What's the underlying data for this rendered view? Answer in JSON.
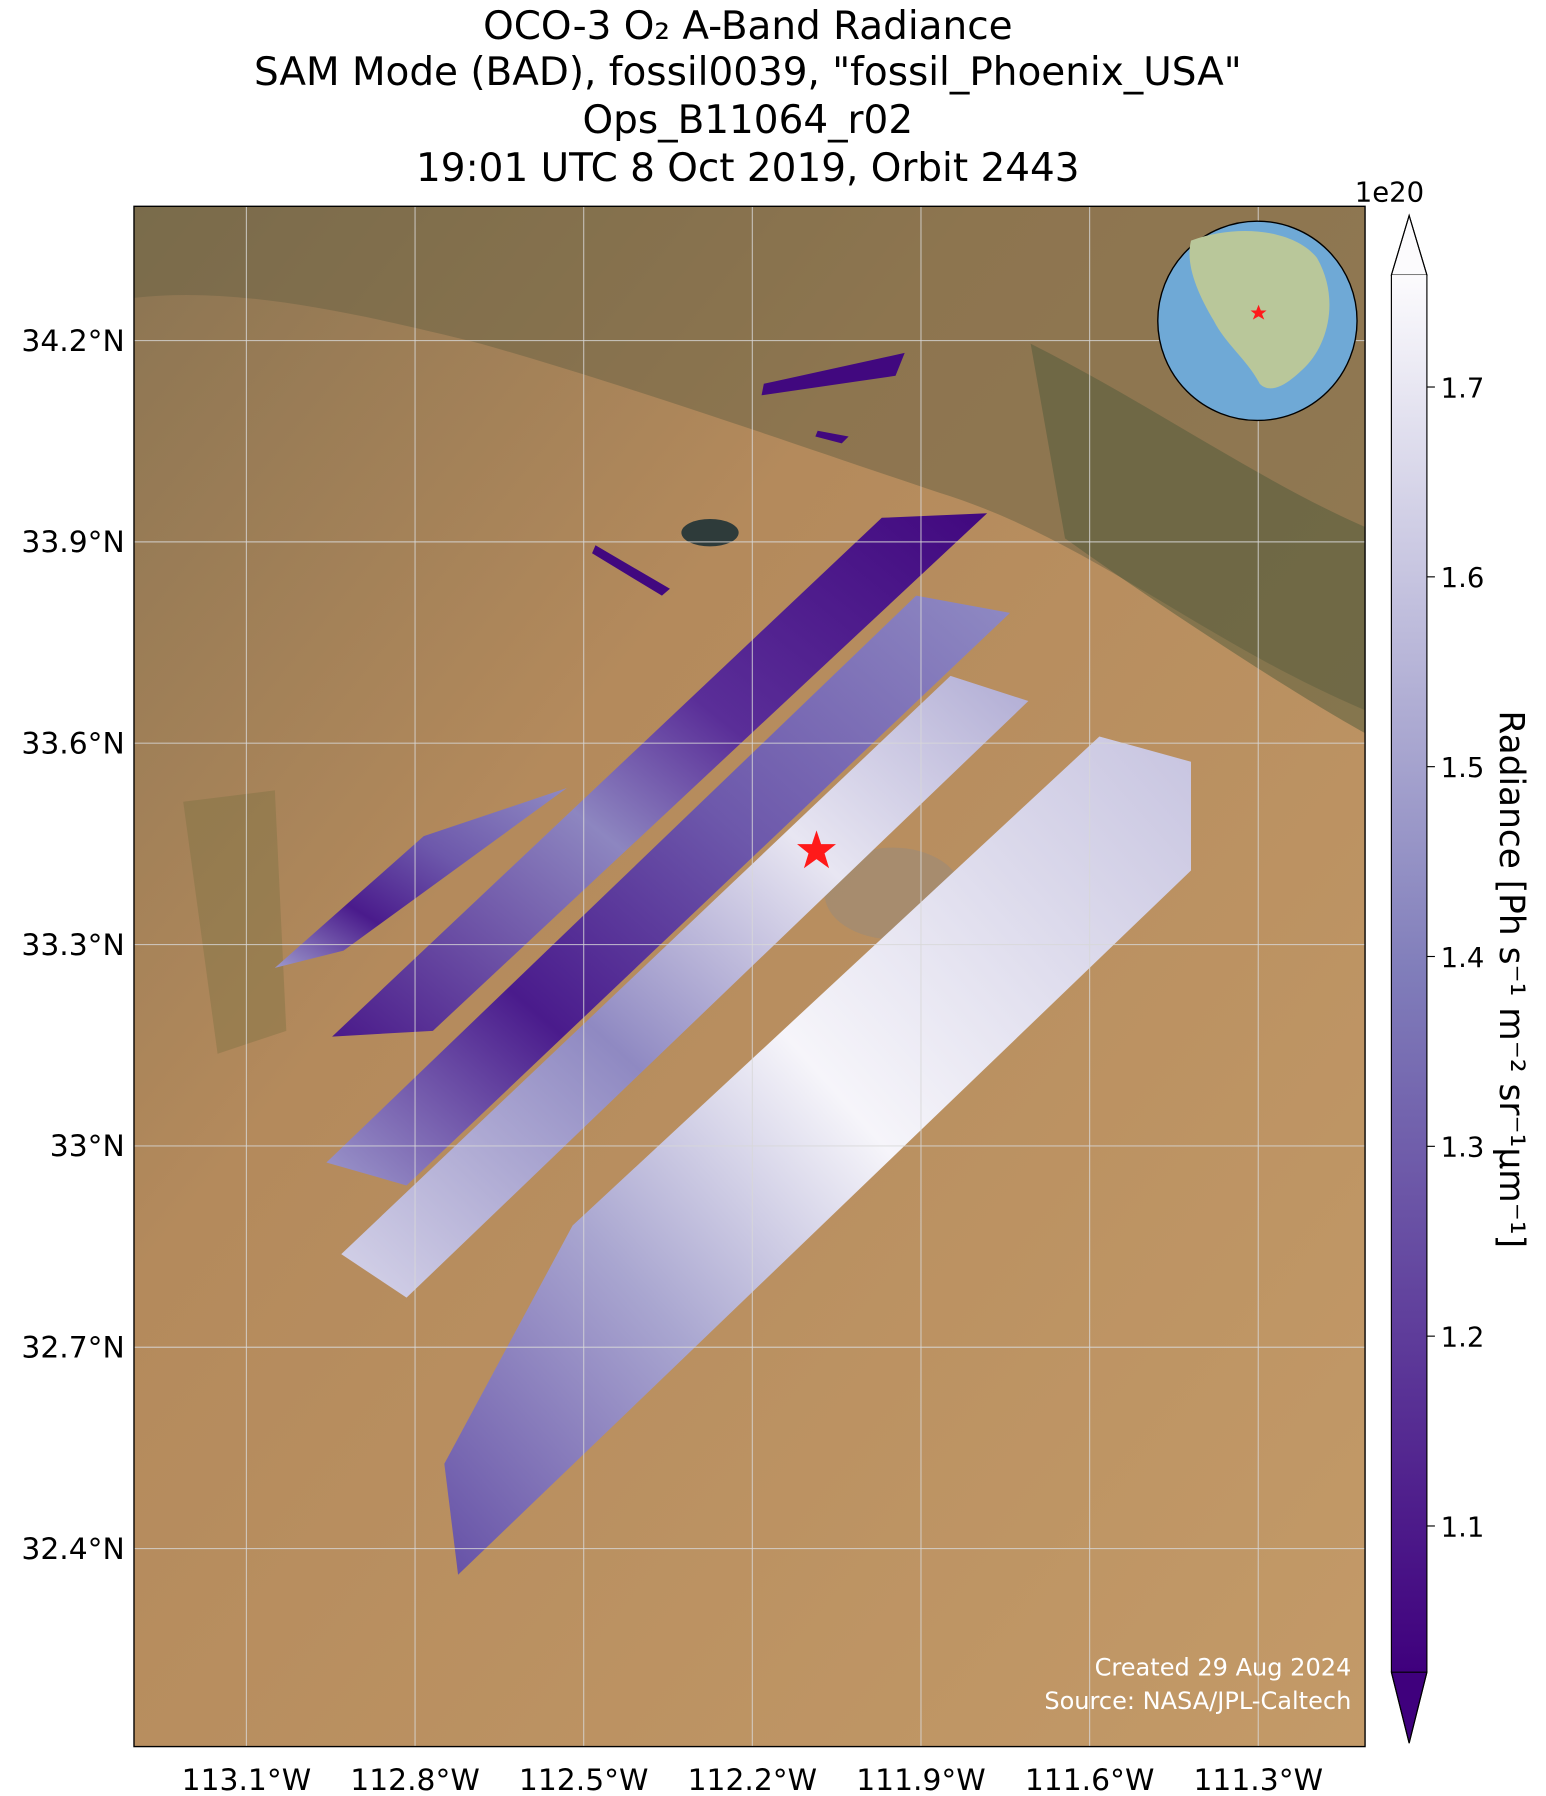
{
  "title": [
    "OCO-3 O₂ A-Band Radiance",
    "SAM Mode (BAD), fossil0039, \"fossil_Phoenix_USA\"",
    "Ops_B11064_r02",
    "19:01 UTC 8 Oct 2019, Orbit 2443"
  ],
  "map": {
    "xlim": [
      -113.3,
      -111.11
    ],
    "ylim": [
      32.105,
      34.4
    ],
    "xticks": [
      {
        "value": -113.1,
        "label": "113.1°W"
      },
      {
        "value": -112.8,
        "label": "112.8°W"
      },
      {
        "value": -112.5,
        "label": "112.5°W"
      },
      {
        "value": -112.2,
        "label": "112.2°W"
      },
      {
        "value": -111.9,
        "label": "111.9°W"
      },
      {
        "value": -111.6,
        "label": "111.6°W"
      },
      {
        "value": -111.3,
        "label": "111.3°W"
      }
    ],
    "yticks": [
      {
        "value": 34.2,
        "label": "34.2°N"
      },
      {
        "value": 33.9,
        "label": "33.9°N"
      },
      {
        "value": 33.6,
        "label": "33.6°N"
      },
      {
        "value": 33.3,
        "label": "33.3°N"
      },
      {
        "value": 33,
        "label": "33°N"
      },
      {
        "value": 32.7,
        "label": "32.7°N"
      },
      {
        "value": 32.4,
        "label": "32.4°N"
      }
    ],
    "grid": true
  },
  "colorbar": {
    "label": "Radiance [Ph s⁻¹ m⁻² sr⁻¹μm⁻¹]",
    "exponent_label": "1e20",
    "clim": [
      1.023,
      1.759
    ],
    "ticks": [
      1.1,
      1.2,
      1.3,
      1.4,
      1.5,
      1.6,
      1.7
    ],
    "colors": [
      "#3f007d",
      "#807dba",
      "#fcfbfd"
    ]
  },
  "credits": [
    "Created 29 Aug 2024",
    "Source: NASA/JPL-Caltech"
  ]
}
